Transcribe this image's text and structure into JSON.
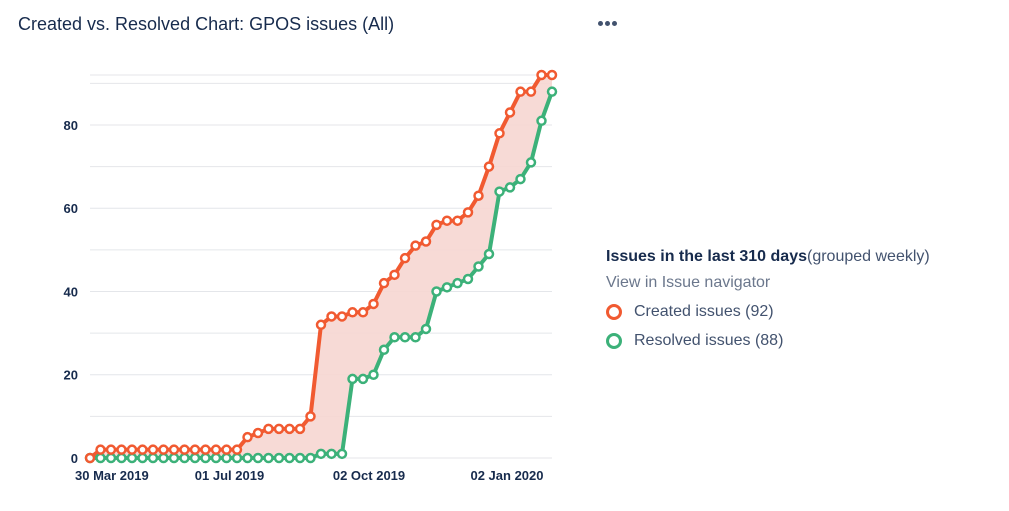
{
  "header": {
    "title": "Created vs. Resolved Chart: GPOS issues (All)",
    "more_icon": "more-horizontal-icon"
  },
  "legend": {
    "heading": "Issues in the last 310 days",
    "subheading": "(grouped weekly)",
    "link": "View in Issue navigator",
    "items": [
      {
        "label": "Created issues (92)",
        "color": "#f15a31"
      },
      {
        "label": "Resolved issues (88)",
        "color": "#3cb179"
      }
    ]
  },
  "chart_data": {
    "type": "line",
    "area_fill": "difference between series",
    "fill_color": "#f6d6d2",
    "ylim": [
      0,
      92
    ],
    "yticks": [
      0,
      20,
      40,
      60,
      80
    ],
    "xticks": [
      "30 Mar 2019",
      "01 Jul 2019",
      "02 Oct 2019",
      "02 Jan 2020"
    ],
    "grid": true,
    "x": [
      "2019-03-30",
      "2019-04-06",
      "2019-04-13",
      "2019-04-20",
      "2019-04-27",
      "2019-05-04",
      "2019-05-11",
      "2019-05-18",
      "2019-05-25",
      "2019-06-01",
      "2019-06-08",
      "2019-06-15",
      "2019-06-22",
      "2019-06-29",
      "2019-07-06",
      "2019-07-13",
      "2019-07-20",
      "2019-07-27",
      "2019-08-03",
      "2019-08-10",
      "2019-08-17",
      "2019-08-24",
      "2019-08-31",
      "2019-09-07",
      "2019-09-14",
      "2019-09-21",
      "2019-09-28",
      "2019-10-05",
      "2019-10-12",
      "2019-10-19",
      "2019-10-26",
      "2019-11-02",
      "2019-11-09",
      "2019-11-16",
      "2019-11-23",
      "2019-11-30",
      "2019-12-07",
      "2019-12-14",
      "2019-12-21",
      "2019-12-28",
      "2020-01-04",
      "2020-01-11",
      "2020-01-18",
      "2020-01-25",
      "2020-02-01"
    ],
    "series": [
      {
        "name": "Created issues (92)",
        "color": "#f15a31",
        "values": [
          0,
          2,
          2,
          2,
          2,
          2,
          2,
          2,
          2,
          2,
          2,
          2,
          2,
          2,
          2,
          5,
          6,
          7,
          7,
          7,
          7,
          10,
          32,
          34,
          34,
          35,
          35,
          37,
          42,
          44,
          48,
          51,
          52,
          56,
          57,
          57,
          59,
          63,
          70,
          78,
          83,
          88,
          88,
          92,
          92
        ]
      },
      {
        "name": "Resolved issues (88)",
        "color": "#3cb179",
        "values": [
          0,
          0,
          0,
          0,
          0,
          0,
          0,
          0,
          0,
          0,
          0,
          0,
          0,
          0,
          0,
          0,
          0,
          0,
          0,
          0,
          0,
          0,
          1,
          1,
          1,
          19,
          19,
          20,
          26,
          29,
          29,
          29,
          31,
          40,
          41,
          42,
          43,
          46,
          49,
          64,
          65,
          67,
          71,
          81,
          88
        ]
      }
    ]
  }
}
